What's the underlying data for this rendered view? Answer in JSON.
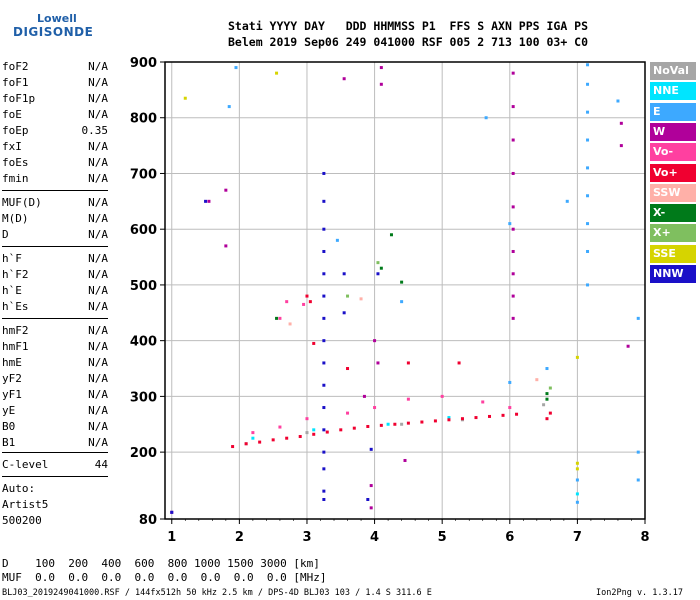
{
  "logo": {
    "line1": "Lowell",
    "line2": "DIGISONDE"
  },
  "header": {
    "row1": "Stati YYYY DAY   DDD HHMMSS P1  FFS S AXN PPS IGA PS",
    "row2": "Belem 2019 Sep06 249 041000 RSF 005 2 713 100 03+ C0"
  },
  "params_group1": [
    {
      "name": "foF2",
      "value": "N/A"
    },
    {
      "name": "foF1",
      "value": "N/A"
    },
    {
      "name": "foF1p",
      "value": "N/A"
    },
    {
      "name": "foE",
      "value": "N/A"
    },
    {
      "name": "foEp",
      "value": "0.35"
    },
    {
      "name": "fxI",
      "value": "N/A"
    },
    {
      "name": "foEs",
      "value": "N/A"
    },
    {
      "name": "fmin",
      "value": "N/A"
    }
  ],
  "params_group2": [
    {
      "name": "MUF(D)",
      "value": "N/A"
    },
    {
      "name": "M(D)",
      "value": "N/A"
    },
    {
      "name": "D",
      "value": "N/A"
    }
  ],
  "params_group3": [
    {
      "name": "h`F",
      "value": "N/A"
    },
    {
      "name": "h`F2",
      "value": "N/A"
    },
    {
      "name": "h`E",
      "value": "N/A"
    },
    {
      "name": "h`Es",
      "value": "N/A"
    }
  ],
  "params_group4": [
    {
      "name": "hmF2",
      "value": "N/A"
    },
    {
      "name": "hmF1",
      "value": "N/A"
    },
    {
      "name": "hmE",
      "value": "N/A"
    },
    {
      "name": "yF2",
      "value": "N/A"
    },
    {
      "name": "yF1",
      "value": "N/A"
    },
    {
      "name": "yE",
      "value": "N/A"
    },
    {
      "name": "B0",
      "value": "N/A"
    },
    {
      "name": "B1",
      "value": "N/A"
    }
  ],
  "clevel": {
    "name": "C-level",
    "value": "44"
  },
  "auto": {
    "line1": "Auto:",
    "line2": "Artist5",
    "line3": "500200"
  },
  "legend": [
    {
      "label": "NoVal",
      "color": "#a6a6a6"
    },
    {
      "label": "NNE",
      "color": "#00e5ff"
    },
    {
      "label": "E",
      "color": "#3da9ff"
    },
    {
      "label": "W",
      "color": "#b0009a"
    },
    {
      "label": "Vo-",
      "color": "#ff40a0"
    },
    {
      "label": "Vo+",
      "color": "#f00030"
    },
    {
      "label": "SSW",
      "color": "#ffb0a8"
    },
    {
      "label": "X-",
      "color": "#007a1a"
    },
    {
      "label": "X+",
      "color": "#7fbf5f"
    },
    {
      "label": "SSE",
      "color": "#d6d400"
    },
    {
      "label": "NNW",
      "color": "#1a10c8"
    }
  ],
  "bottom": {
    "d_row": "D    100  200  400  600  800 1000 1500 3000 [km]",
    "muf_row": "MUF  0.0  0.0  0.0  0.0  0.0  0.0  0.0  0.0 [MHz]"
  },
  "footer": {
    "left": "BLJ03_2019249041000.RSF / 144fx512h 50 kHz 2.5 km / DPS-4D BLJ03 103 / 1.4 S 311.6 E",
    "right": "Ion2Png v. 1.3.17"
  },
  "chart_data": {
    "type": "scatter",
    "xlabel": "",
    "ylabel": "",
    "xlim": [
      0.9,
      8.0
    ],
    "ylim": [
      80,
      900
    ],
    "x_ticks": [
      1,
      2,
      3,
      4,
      5,
      6,
      7,
      8
    ],
    "y_ticks": [
      80,
      200,
      300,
      400,
      500,
      600,
      700,
      800,
      900
    ],
    "grid": true,
    "legend_position": "right",
    "series": [
      {
        "name": "NoVal",
        "color": "#a6a6a6",
        "points": [
          [
            2.1,
            215
          ],
          [
            3.0,
            235
          ],
          [
            4.4,
            250
          ],
          [
            5.3,
            258
          ],
          [
            6.5,
            285
          ]
        ]
      },
      {
        "name": "NNE",
        "color": "#00e5ff",
        "points": [
          [
            2.2,
            225
          ],
          [
            3.1,
            240
          ],
          [
            4.2,
            250
          ],
          [
            5.1,
            262
          ],
          [
            7.0,
            125
          ]
        ]
      },
      {
        "name": "E",
        "color": "#3da9ff",
        "points": [
          [
            1.85,
            820
          ],
          [
            1.95,
            890
          ],
          [
            3.45,
            580
          ],
          [
            4.4,
            470
          ],
          [
            5.65,
            800
          ],
          [
            6.0,
            610
          ],
          [
            6.85,
            650
          ],
          [
            7.0,
            110
          ],
          [
            7.0,
            150
          ],
          [
            7.15,
            500
          ],
          [
            7.15,
            560
          ],
          [
            7.15,
            610
          ],
          [
            7.15,
            660
          ],
          [
            7.15,
            710
          ],
          [
            7.15,
            760
          ],
          [
            7.15,
            810
          ],
          [
            7.15,
            860
          ],
          [
            7.15,
            895
          ],
          [
            7.6,
            830
          ],
          [
            7.9,
            440
          ],
          [
            7.9,
            200
          ],
          [
            7.9,
            150
          ],
          [
            6.55,
            350
          ],
          [
            6.0,
            325
          ]
        ]
      },
      {
        "name": "W",
        "color": "#b0009a",
        "points": [
          [
            1.8,
            670
          ],
          [
            1.55,
            650
          ],
          [
            1.8,
            570
          ],
          [
            3.55,
            870
          ],
          [
            4.1,
            890
          ],
          [
            4.1,
            860
          ],
          [
            6.05,
            880
          ],
          [
            6.05,
            820
          ],
          [
            6.05,
            760
          ],
          [
            6.05,
            700
          ],
          [
            6.05,
            640
          ],
          [
            6.05,
            600
          ],
          [
            6.05,
            560
          ],
          [
            6.05,
            520
          ],
          [
            6.05,
            480
          ],
          [
            6.05,
            440
          ],
          [
            7.65,
            750
          ],
          [
            7.65,
            790
          ],
          [
            7.75,
            390
          ],
          [
            4.0,
            400
          ],
          [
            4.05,
            360
          ],
          [
            3.85,
            300
          ],
          [
            4.45,
            185
          ],
          [
            3.95,
            140
          ],
          [
            3.95,
            100
          ],
          [
            1.0,
            92
          ]
        ]
      },
      {
        "name": "Vo-",
        "color": "#ff40a0",
        "points": [
          [
            2.2,
            235
          ],
          [
            2.6,
            245
          ],
          [
            3.0,
            260
          ],
          [
            3.6,
            270
          ],
          [
            4.0,
            280
          ],
          [
            4.5,
            295
          ],
          [
            5.0,
            300
          ],
          [
            5.6,
            290
          ],
          [
            6.0,
            280
          ],
          [
            2.6,
            440
          ],
          [
            2.7,
            470
          ],
          [
            2.95,
            465
          ]
        ]
      },
      {
        "name": "Vo+",
        "color": "#f00030",
        "points": [
          [
            1.9,
            210
          ],
          [
            2.1,
            215
          ],
          [
            2.3,
            218
          ],
          [
            2.5,
            222
          ],
          [
            2.7,
            225
          ],
          [
            2.9,
            228
          ],
          [
            3.1,
            232
          ],
          [
            3.3,
            236
          ],
          [
            3.5,
            240
          ],
          [
            3.7,
            243
          ],
          [
            3.9,
            246
          ],
          [
            4.1,
            248
          ],
          [
            4.3,
            250
          ],
          [
            4.5,
            252
          ],
          [
            4.7,
            254
          ],
          [
            4.9,
            256
          ],
          [
            5.1,
            258
          ],
          [
            5.3,
            260
          ],
          [
            5.5,
            262
          ],
          [
            5.7,
            264
          ],
          [
            5.9,
            266
          ],
          [
            6.1,
            268
          ],
          [
            3.0,
            480
          ],
          [
            3.05,
            470
          ],
          [
            3.1,
            395
          ],
          [
            3.6,
            350
          ],
          [
            4.5,
            360
          ],
          [
            5.25,
            360
          ],
          [
            6.55,
            260
          ],
          [
            6.6,
            270
          ]
        ]
      },
      {
        "name": "SSW",
        "color": "#ffb0a8",
        "points": [
          [
            2.75,
            430
          ],
          [
            3.8,
            475
          ],
          [
            6.4,
            330
          ]
        ]
      },
      {
        "name": "X-",
        "color": "#007a1a",
        "points": [
          [
            2.55,
            440
          ],
          [
            4.1,
            530
          ],
          [
            4.25,
            590
          ],
          [
            4.4,
            505
          ],
          [
            6.55,
            295
          ],
          [
            6.55,
            305
          ]
        ]
      },
      {
        "name": "X+",
        "color": "#7fbf5f",
        "points": [
          [
            3.6,
            480
          ],
          [
            4.05,
            540
          ],
          [
            6.6,
            315
          ]
        ]
      },
      {
        "name": "SSE",
        "color": "#d6d400",
        "points": [
          [
            1.2,
            835
          ],
          [
            2.55,
            880
          ],
          [
            7.0,
            180
          ],
          [
            7.0,
            170
          ],
          [
            7.0,
            370
          ]
        ]
      },
      {
        "name": "NNW",
        "color": "#1a10c8",
        "points": [
          [
            1.5,
            650
          ],
          [
            3.25,
            700
          ],
          [
            3.25,
            650
          ],
          [
            3.25,
            600
          ],
          [
            3.25,
            560
          ],
          [
            3.25,
            520
          ],
          [
            3.25,
            480
          ],
          [
            3.25,
            440
          ],
          [
            3.25,
            400
          ],
          [
            3.25,
            360
          ],
          [
            3.25,
            320
          ],
          [
            3.25,
            280
          ],
          [
            3.25,
            240
          ],
          [
            3.25,
            200
          ],
          [
            3.25,
            170
          ],
          [
            3.25,
            130
          ],
          [
            3.25,
            115
          ],
          [
            3.55,
            450
          ],
          [
            3.55,
            520
          ],
          [
            4.05,
            520
          ],
          [
            3.95,
            205
          ],
          [
            3.9,
            115
          ],
          [
            1.0,
            92
          ]
        ]
      }
    ]
  }
}
